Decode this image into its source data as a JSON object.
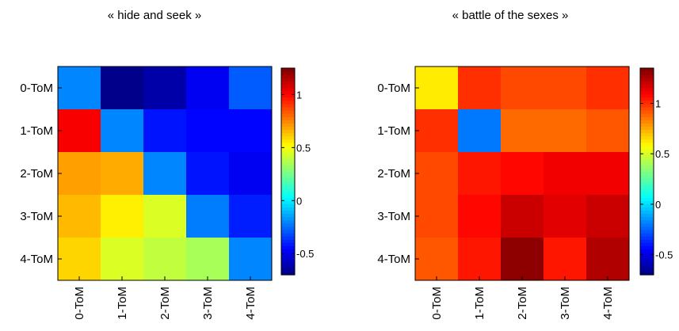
{
  "chart_data": [
    {
      "type": "heatmap",
      "title": "« hide and seek »",
      "row_labels": [
        "0-ToM",
        "1-ToM",
        "2-ToM",
        "3-ToM",
        "4-ToM"
      ],
      "col_labels": [
        "0-ToM",
        "1-ToM",
        "2-ToM",
        "3-ToM",
        "4-ToM"
      ],
      "values": [
        [
          -0.2,
          -0.68,
          -0.62,
          -0.48,
          -0.28
        ],
        [
          1.02,
          -0.2,
          -0.42,
          -0.45,
          -0.45
        ],
        [
          0.7,
          0.68,
          -0.2,
          -0.42,
          -0.48
        ],
        [
          0.65,
          0.55,
          0.45,
          -0.22,
          -0.4
        ],
        [
          0.6,
          0.45,
          0.4,
          0.35,
          -0.2
        ]
      ],
      "colorbar": {
        "min": -0.7,
        "max": 1.25,
        "ticks": [
          -0.5,
          0,
          0.5,
          1
        ],
        "tick_labels": [
          "-0.5",
          "0",
          "0.5",
          "1"
        ]
      },
      "colormap": "jet"
    },
    {
      "type": "heatmap",
      "title": "« battle of the sexes »",
      "row_labels": [
        "0-ToM",
        "1-ToM",
        "2-ToM",
        "3-ToM",
        "4-ToM"
      ],
      "col_labels": [
        "0-ToM",
        "1-ToM",
        "2-ToM",
        "3-ToM",
        "4-ToM"
      ],
      "values": [
        [
          0.62,
          1.0,
          0.95,
          0.95,
          1.0
        ],
        [
          1.0,
          -0.2,
          0.88,
          0.88,
          0.92
        ],
        [
          0.95,
          1.05,
          1.08,
          1.12,
          1.12
        ],
        [
          0.95,
          1.08,
          1.2,
          1.15,
          1.2
        ],
        [
          0.92,
          1.05,
          1.32,
          1.05,
          1.25
        ]
      ],
      "colorbar": {
        "min": -0.7,
        "max": 1.35,
        "ticks": [
          -0.5,
          0,
          0.5,
          1
        ],
        "tick_labels": [
          "-0.5",
          "0",
          "0.5",
          "1"
        ]
      },
      "colormap": "jet"
    }
  ]
}
